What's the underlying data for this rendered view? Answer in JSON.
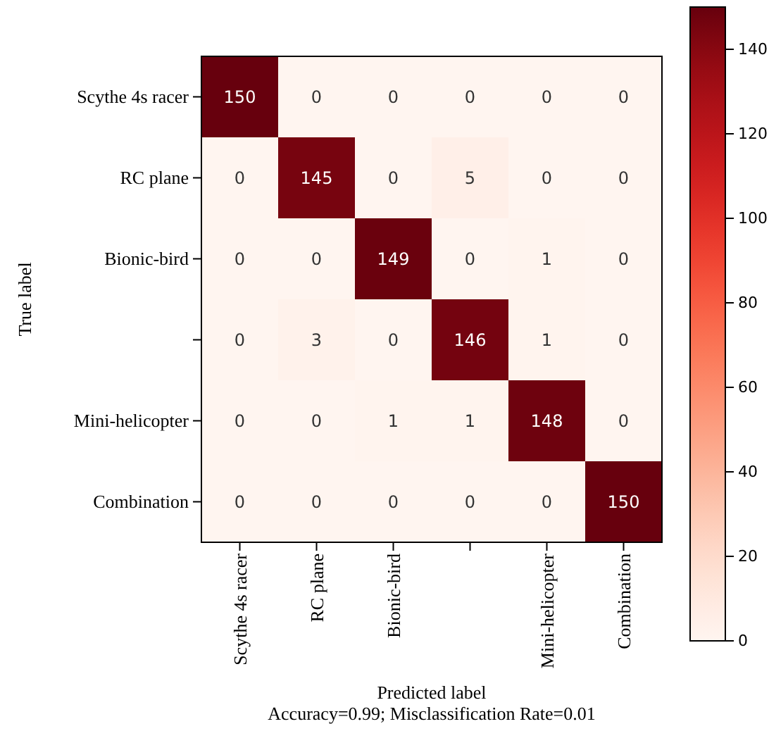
{
  "chart_data": {
    "type": "heatmap",
    "xlabel": "Predicted label",
    "ylabel": "True label",
    "annotations": [
      "Accuracy=0.99; Misclassification Rate=0.01"
    ],
    "categories": [
      "Scythe 4s racer",
      "RC plane",
      "Bionic-bird",
      null,
      "Mini-helicopter",
      "Combination"
    ],
    "y_categories": [
      "Scythe 4s racer",
      "RC plane",
      "Bionic-bird",
      null,
      "Mini-helicopter",
      "Combination"
    ],
    "cells": [
      [
        150,
        0,
        0,
        0,
        0,
        0
      ],
      [
        0,
        145,
        0,
        5,
        0,
        0
      ],
      [
        0,
        0,
        149,
        0,
        1,
        0
      ],
      [
        0,
        3,
        0,
        146,
        1,
        0
      ],
      [
        0,
        0,
        1,
        1,
        148,
        0
      ],
      [
        0,
        0,
        0,
        0,
        0,
        150
      ]
    ],
    "clim": [
      0,
      150
    ],
    "cticks": [
      0,
      20,
      40,
      60,
      80,
      100,
      120,
      140
    ],
    "data_labels": true
  }
}
